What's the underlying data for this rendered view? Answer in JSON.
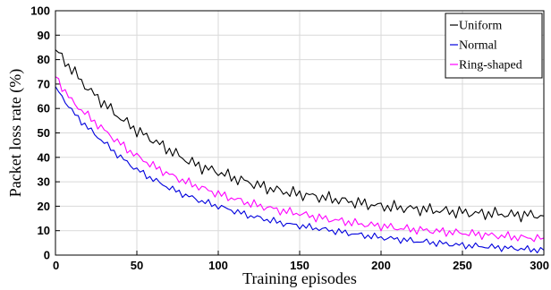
{
  "chart_data": {
    "type": "line",
    "xlabel": "Training episodes",
    "ylabel": "Packet loss rate (%)",
    "xlim": [
      0,
      300
    ],
    "ylim": [
      0,
      100
    ],
    "xticks": [
      0,
      50,
      100,
      150,
      200,
      250,
      300
    ],
    "yticks": [
      0,
      10,
      20,
      30,
      40,
      50,
      60,
      70,
      80,
      90,
      100
    ],
    "grid": true,
    "legend_position": "top-right",
    "x": [
      0,
      10,
      20,
      30,
      40,
      50,
      60,
      70,
      80,
      90,
      100,
      110,
      120,
      130,
      140,
      150,
      160,
      170,
      180,
      190,
      200,
      210,
      220,
      230,
      240,
      250,
      260,
      270,
      280,
      290,
      300
    ],
    "series": [
      {
        "name": "Uniform",
        "color": "#000000",
        "values": [
          84,
          76,
          68,
          62,
          56,
          51,
          47,
          43,
          39,
          36,
          34,
          31.5,
          29.5,
          27.5,
          26,
          25,
          24,
          23,
          22,
          21,
          20,
          19.5,
          19,
          18.5,
          18,
          17.5,
          17,
          17,
          16.5,
          16.5,
          16
        ]
      },
      {
        "name": "Normal",
        "color": "#0000dd",
        "values": [
          69,
          59,
          52,
          46,
          40,
          35,
          31,
          27.5,
          24.5,
          22,
          20,
          18,
          16,
          14.5,
          13,
          12,
          11,
          10,
          9,
          8,
          7.2,
          6.5,
          5.8,
          5.2,
          4.6,
          4,
          3.6,
          3.2,
          2.8,
          2.4,
          2
        ]
      },
      {
        "name": "Ring-shaped",
        "color": "#ff00ff",
        "values": [
          73,
          63,
          57,
          51,
          45.5,
          40.5,
          36.5,
          33,
          30,
          27.5,
          25,
          23,
          21,
          19.5,
          18,
          17,
          15.5,
          14.5,
          13.5,
          12.5,
          12,
          11,
          10.5,
          10,
          9.5,
          9,
          8.5,
          8,
          7.5,
          7,
          7
        ]
      }
    ]
  }
}
